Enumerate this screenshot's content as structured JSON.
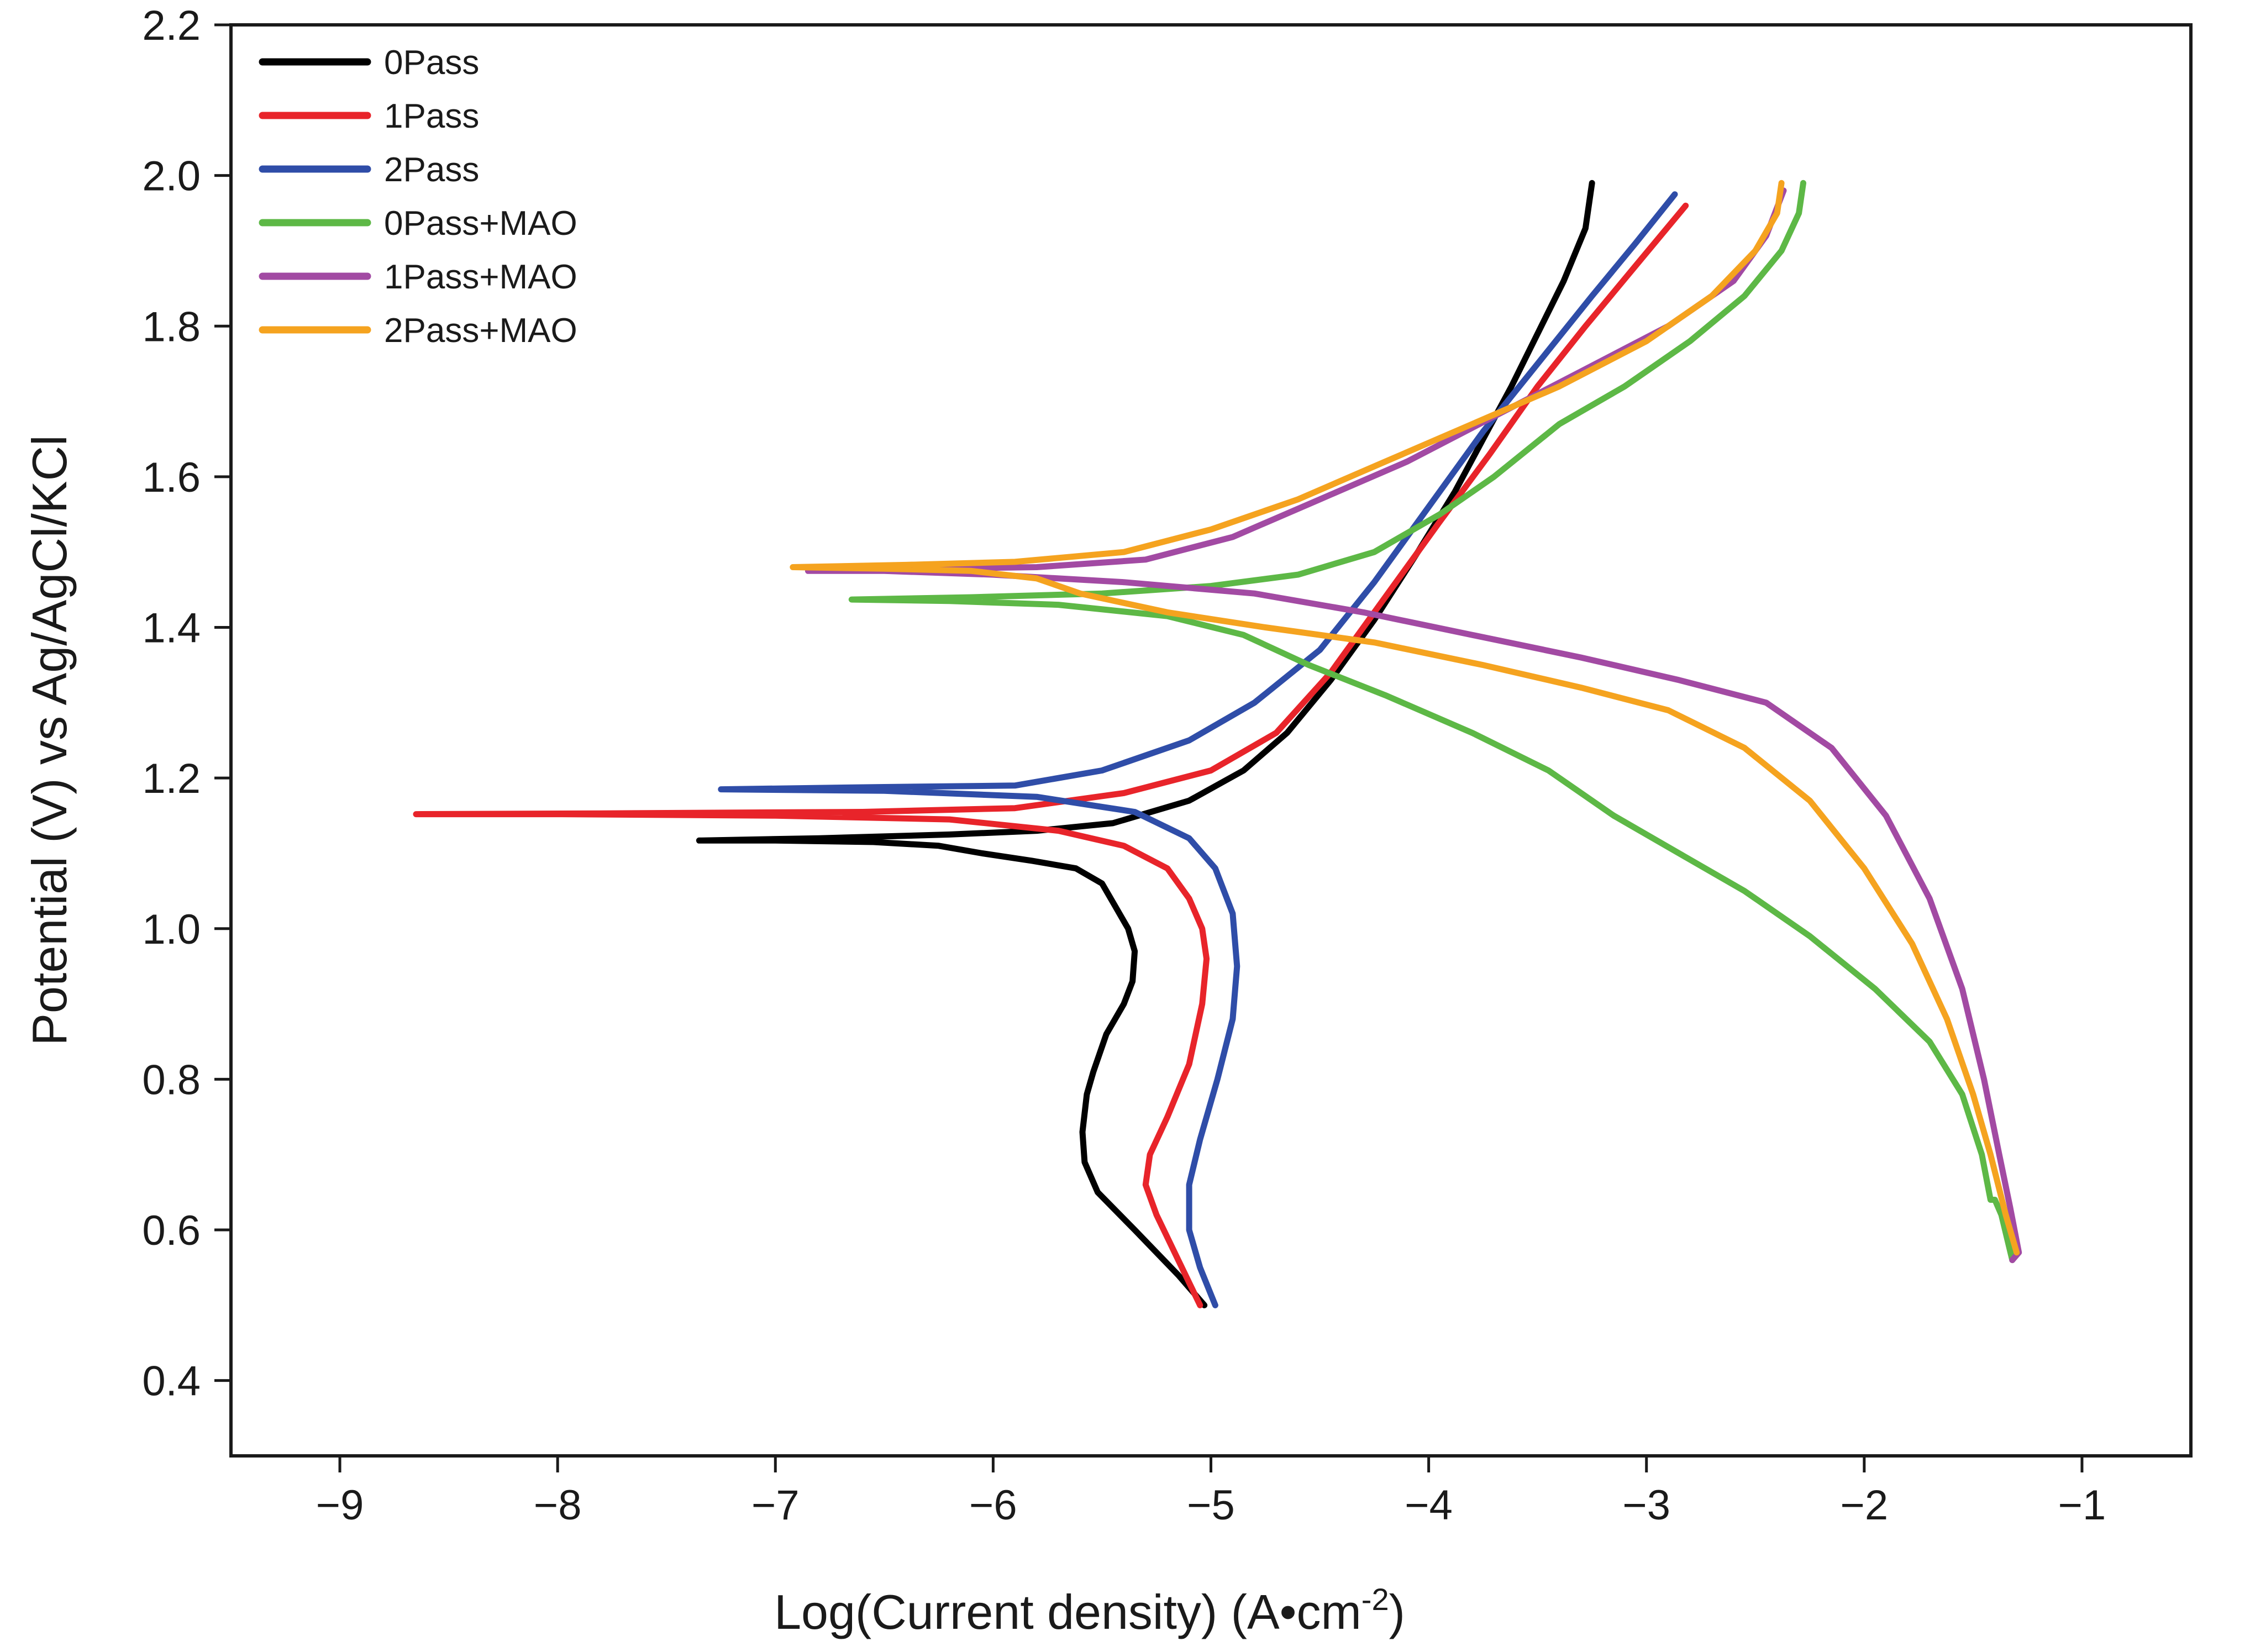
{
  "chart_data": {
    "type": "line",
    "title": "",
    "xlabel": "Log(Current density) (A•cm",
    "xlabel_superscript": "-2",
    "xlabel_suffix": ")",
    "ylabel": "Potential  (V) vs Ag/AgCl/KCl",
    "xlim": [
      -9.5,
      -0.5
    ],
    "ylim": [
      0.3,
      2.2
    ],
    "xticks": [
      -9,
      -8,
      -7,
      -6,
      -5,
      -4,
      -3,
      -2,
      -1
    ],
    "xtick_labels": [
      "−9",
      "−8",
      "−7",
      "−6",
      "−5",
      "−4",
      "−3",
      "−2",
      "−1"
    ],
    "yticks": [
      0.4,
      0.6,
      0.8,
      1.0,
      1.2,
      1.4,
      1.6,
      1.8,
      2.0,
      2.2
    ],
    "ytick_labels": [
      "0.4",
      "0.6",
      "0.8",
      "1.0",
      "1.2",
      "1.4",
      "1.6",
      "1.8",
      "2.0",
      "2.2"
    ],
    "grid": false,
    "legend_position": "top-left",
    "series": [
      {
        "name": "0Pass",
        "color": "#000000",
        "points": [
          [
            -5.03,
            0.5
          ],
          [
            -5.15,
            0.54
          ],
          [
            -5.35,
            0.6
          ],
          [
            -5.52,
            0.65
          ],
          [
            -5.58,
            0.69
          ],
          [
            -5.59,
            0.73
          ],
          [
            -5.57,
            0.78
          ],
          [
            -5.54,
            0.81
          ],
          [
            -5.48,
            0.86
          ],
          [
            -5.4,
            0.9
          ],
          [
            -5.36,
            0.93
          ],
          [
            -5.35,
            0.97
          ],
          [
            -5.38,
            1.0
          ],
          [
            -5.44,
            1.03
          ],
          [
            -5.5,
            1.06
          ],
          [
            -5.62,
            1.08
          ],
          [
            -5.82,
            1.09
          ],
          [
            -6.05,
            1.1
          ],
          [
            -6.25,
            1.11
          ],
          [
            -6.55,
            1.115
          ],
          [
            -7.0,
            1.117
          ],
          [
            -7.35,
            1.117
          ],
          [
            -6.8,
            1.12
          ],
          [
            -6.2,
            1.125
          ],
          [
            -5.8,
            1.13
          ],
          [
            -5.45,
            1.14
          ],
          [
            -5.1,
            1.17
          ],
          [
            -4.85,
            1.21
          ],
          [
            -4.65,
            1.26
          ],
          [
            -4.45,
            1.33
          ],
          [
            -4.25,
            1.41
          ],
          [
            -4.05,
            1.5
          ],
          [
            -3.88,
            1.58
          ],
          [
            -3.75,
            1.65
          ],
          [
            -3.62,
            1.72
          ],
          [
            -3.5,
            1.79
          ],
          [
            -3.38,
            1.86
          ],
          [
            -3.28,
            1.93
          ],
          [
            -3.25,
            1.99
          ]
        ]
      },
      {
        "name": "1Pass",
        "color": "#e8242a",
        "points": [
          [
            -5.05,
            0.5
          ],
          [
            -5.15,
            0.56
          ],
          [
            -5.25,
            0.62
          ],
          [
            -5.3,
            0.66
          ],
          [
            -5.28,
            0.7
          ],
          [
            -5.2,
            0.75
          ],
          [
            -5.1,
            0.82
          ],
          [
            -5.04,
            0.9
          ],
          [
            -5.02,
            0.96
          ],
          [
            -5.04,
            1.0
          ],
          [
            -5.1,
            1.04
          ],
          [
            -5.2,
            1.08
          ],
          [
            -5.4,
            1.11
          ],
          [
            -5.7,
            1.13
          ],
          [
            -6.2,
            1.145
          ],
          [
            -7.0,
            1.15
          ],
          [
            -8.0,
            1.152
          ],
          [
            -8.65,
            1.152
          ],
          [
            -7.8,
            1.153
          ],
          [
            -6.6,
            1.155
          ],
          [
            -5.9,
            1.16
          ],
          [
            -5.4,
            1.18
          ],
          [
            -5.0,
            1.21
          ],
          [
            -4.7,
            1.26
          ],
          [
            -4.45,
            1.34
          ],
          [
            -4.2,
            1.44
          ],
          [
            -3.95,
            1.54
          ],
          [
            -3.72,
            1.63
          ],
          [
            -3.5,
            1.72
          ],
          [
            -3.28,
            1.8
          ],
          [
            -3.05,
            1.88
          ],
          [
            -2.82,
            1.96
          ]
        ]
      },
      {
        "name": "2Pass",
        "color": "#2f4da8",
        "points": [
          [
            -4.98,
            0.5
          ],
          [
            -5.05,
            0.55
          ],
          [
            -5.1,
            0.6
          ],
          [
            -5.1,
            0.66
          ],
          [
            -5.05,
            0.72
          ],
          [
            -4.97,
            0.8
          ],
          [
            -4.9,
            0.88
          ],
          [
            -4.88,
            0.95
          ],
          [
            -4.9,
            1.02
          ],
          [
            -4.98,
            1.08
          ],
          [
            -5.1,
            1.12
          ],
          [
            -5.35,
            1.155
          ],
          [
            -5.8,
            1.175
          ],
          [
            -6.5,
            1.183
          ],
          [
            -7.25,
            1.185
          ],
          [
            -6.5,
            1.188
          ],
          [
            -5.9,
            1.19
          ],
          [
            -5.5,
            1.21
          ],
          [
            -5.1,
            1.25
          ],
          [
            -4.8,
            1.3
          ],
          [
            -4.5,
            1.37
          ],
          [
            -4.25,
            1.46
          ],
          [
            -4.0,
            1.56
          ],
          [
            -3.75,
            1.66
          ],
          [
            -3.5,
            1.75
          ],
          [
            -3.25,
            1.84
          ],
          [
            -3.05,
            1.91
          ],
          [
            -2.87,
            1.975
          ]
        ]
      },
      {
        "name": "0Pass+MAO",
        "color": "#5db846",
        "points": [
          [
            -1.32,
            0.56
          ],
          [
            -1.37,
            0.62
          ],
          [
            -1.4,
            0.64
          ],
          [
            -1.42,
            0.64
          ],
          [
            -1.46,
            0.7
          ],
          [
            -1.55,
            0.78
          ],
          [
            -1.7,
            0.85
          ],
          [
            -1.95,
            0.92
          ],
          [
            -2.25,
            0.99
          ],
          [
            -2.55,
            1.05
          ],
          [
            -2.85,
            1.1
          ],
          [
            -3.15,
            1.15
          ],
          [
            -3.45,
            1.21
          ],
          [
            -3.8,
            1.26
          ],
          [
            -4.2,
            1.31
          ],
          [
            -4.55,
            1.35
          ],
          [
            -4.85,
            1.39
          ],
          [
            -5.2,
            1.415
          ],
          [
            -5.7,
            1.43
          ],
          [
            -6.2,
            1.435
          ],
          [
            -6.65,
            1.437
          ],
          [
            -6.1,
            1.44
          ],
          [
            -5.5,
            1.445
          ],
          [
            -5.0,
            1.455
          ],
          [
            -4.6,
            1.47
          ],
          [
            -4.25,
            1.5
          ],
          [
            -3.95,
            1.55
          ],
          [
            -3.7,
            1.6
          ],
          [
            -3.4,
            1.67
          ],
          [
            -3.1,
            1.72
          ],
          [
            -2.8,
            1.78
          ],
          [
            -2.55,
            1.84
          ],
          [
            -2.38,
            1.9
          ],
          [
            -2.3,
            1.95
          ],
          [
            -2.28,
            1.99
          ]
        ]
      },
      {
        "name": "1Pass+MAO",
        "color": "#a24aa3",
        "points": [
          [
            -1.32,
            0.56
          ],
          [
            -1.29,
            0.57
          ],
          [
            -1.33,
            0.63
          ],
          [
            -1.38,
            0.7
          ],
          [
            -1.45,
            0.8
          ],
          [
            -1.55,
            0.92
          ],
          [
            -1.7,
            1.04
          ],
          [
            -1.9,
            1.15
          ],
          [
            -2.15,
            1.24
          ],
          [
            -2.45,
            1.3
          ],
          [
            -2.85,
            1.33
          ],
          [
            -3.3,
            1.36
          ],
          [
            -3.8,
            1.39
          ],
          [
            -4.3,
            1.42
          ],
          [
            -4.8,
            1.445
          ],
          [
            -5.4,
            1.46
          ],
          [
            -6.0,
            1.47
          ],
          [
            -6.5,
            1.475
          ],
          [
            -6.85,
            1.475
          ],
          [
            -6.3,
            1.478
          ],
          [
            -5.8,
            1.48
          ],
          [
            -5.3,
            1.49
          ],
          [
            -4.9,
            1.52
          ],
          [
            -4.5,
            1.57
          ],
          [
            -4.1,
            1.62
          ],
          [
            -3.7,
            1.68
          ],
          [
            -3.3,
            1.74
          ],
          [
            -2.9,
            1.8
          ],
          [
            -2.6,
            1.86
          ],
          [
            -2.45,
            1.92
          ],
          [
            -2.37,
            1.98
          ]
        ]
      },
      {
        "name": "2Pass+MAO",
        "color": "#f5a31f",
        "points": [
          [
            -1.3,
            0.57
          ],
          [
            -1.35,
            0.62
          ],
          [
            -1.42,
            0.7
          ],
          [
            -1.5,
            0.78
          ],
          [
            -1.62,
            0.88
          ],
          [
            -1.78,
            0.98
          ],
          [
            -2.0,
            1.08
          ],
          [
            -2.25,
            1.17
          ],
          [
            -2.55,
            1.24
          ],
          [
            -2.9,
            1.29
          ],
          [
            -3.3,
            1.32
          ],
          [
            -3.75,
            1.35
          ],
          [
            -4.25,
            1.38
          ],
          [
            -4.75,
            1.4
          ],
          [
            -5.2,
            1.42
          ],
          [
            -5.6,
            1.445
          ],
          [
            -5.8,
            1.465
          ],
          [
            -6.1,
            1.475
          ],
          [
            -6.5,
            1.478
          ],
          [
            -6.92,
            1.48
          ],
          [
            -6.4,
            1.483
          ],
          [
            -5.9,
            1.487
          ],
          [
            -5.4,
            1.5
          ],
          [
            -5.0,
            1.53
          ],
          [
            -4.6,
            1.57
          ],
          [
            -4.2,
            1.62
          ],
          [
            -3.8,
            1.67
          ],
          [
            -3.4,
            1.72
          ],
          [
            -3.0,
            1.78
          ],
          [
            -2.7,
            1.84
          ],
          [
            -2.5,
            1.9
          ],
          [
            -2.4,
            1.95
          ],
          [
            -2.38,
            1.99
          ]
        ]
      }
    ]
  }
}
